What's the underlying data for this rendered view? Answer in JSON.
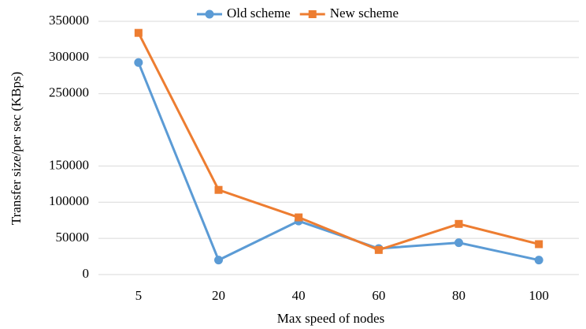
{
  "chart_data": {
    "type": "line",
    "xlabel": "Max speed of nodes",
    "ylabel": "Transfer size/per sec (KBps)",
    "categories": [
      "5",
      "20",
      "40",
      "60",
      "80",
      "100"
    ],
    "series": [
      {
        "name": "Old scheme",
        "color": "#5b9bd5",
        "marker": "circle",
        "values": [
          293000,
          20000,
          74000,
          36000,
          44000,
          20000
        ]
      },
      {
        "name": "New scheme",
        "color": "#ed7d31",
        "marker": "square",
        "values": [
          334000,
          117000,
          79000,
          34000,
          70000,
          42000
        ]
      }
    ],
    "ylim": [
      0,
      350000
    ],
    "yticks": [
      0,
      50000,
      100000,
      150000,
      250000,
      300000,
      350000
    ],
    "legend": "top"
  }
}
